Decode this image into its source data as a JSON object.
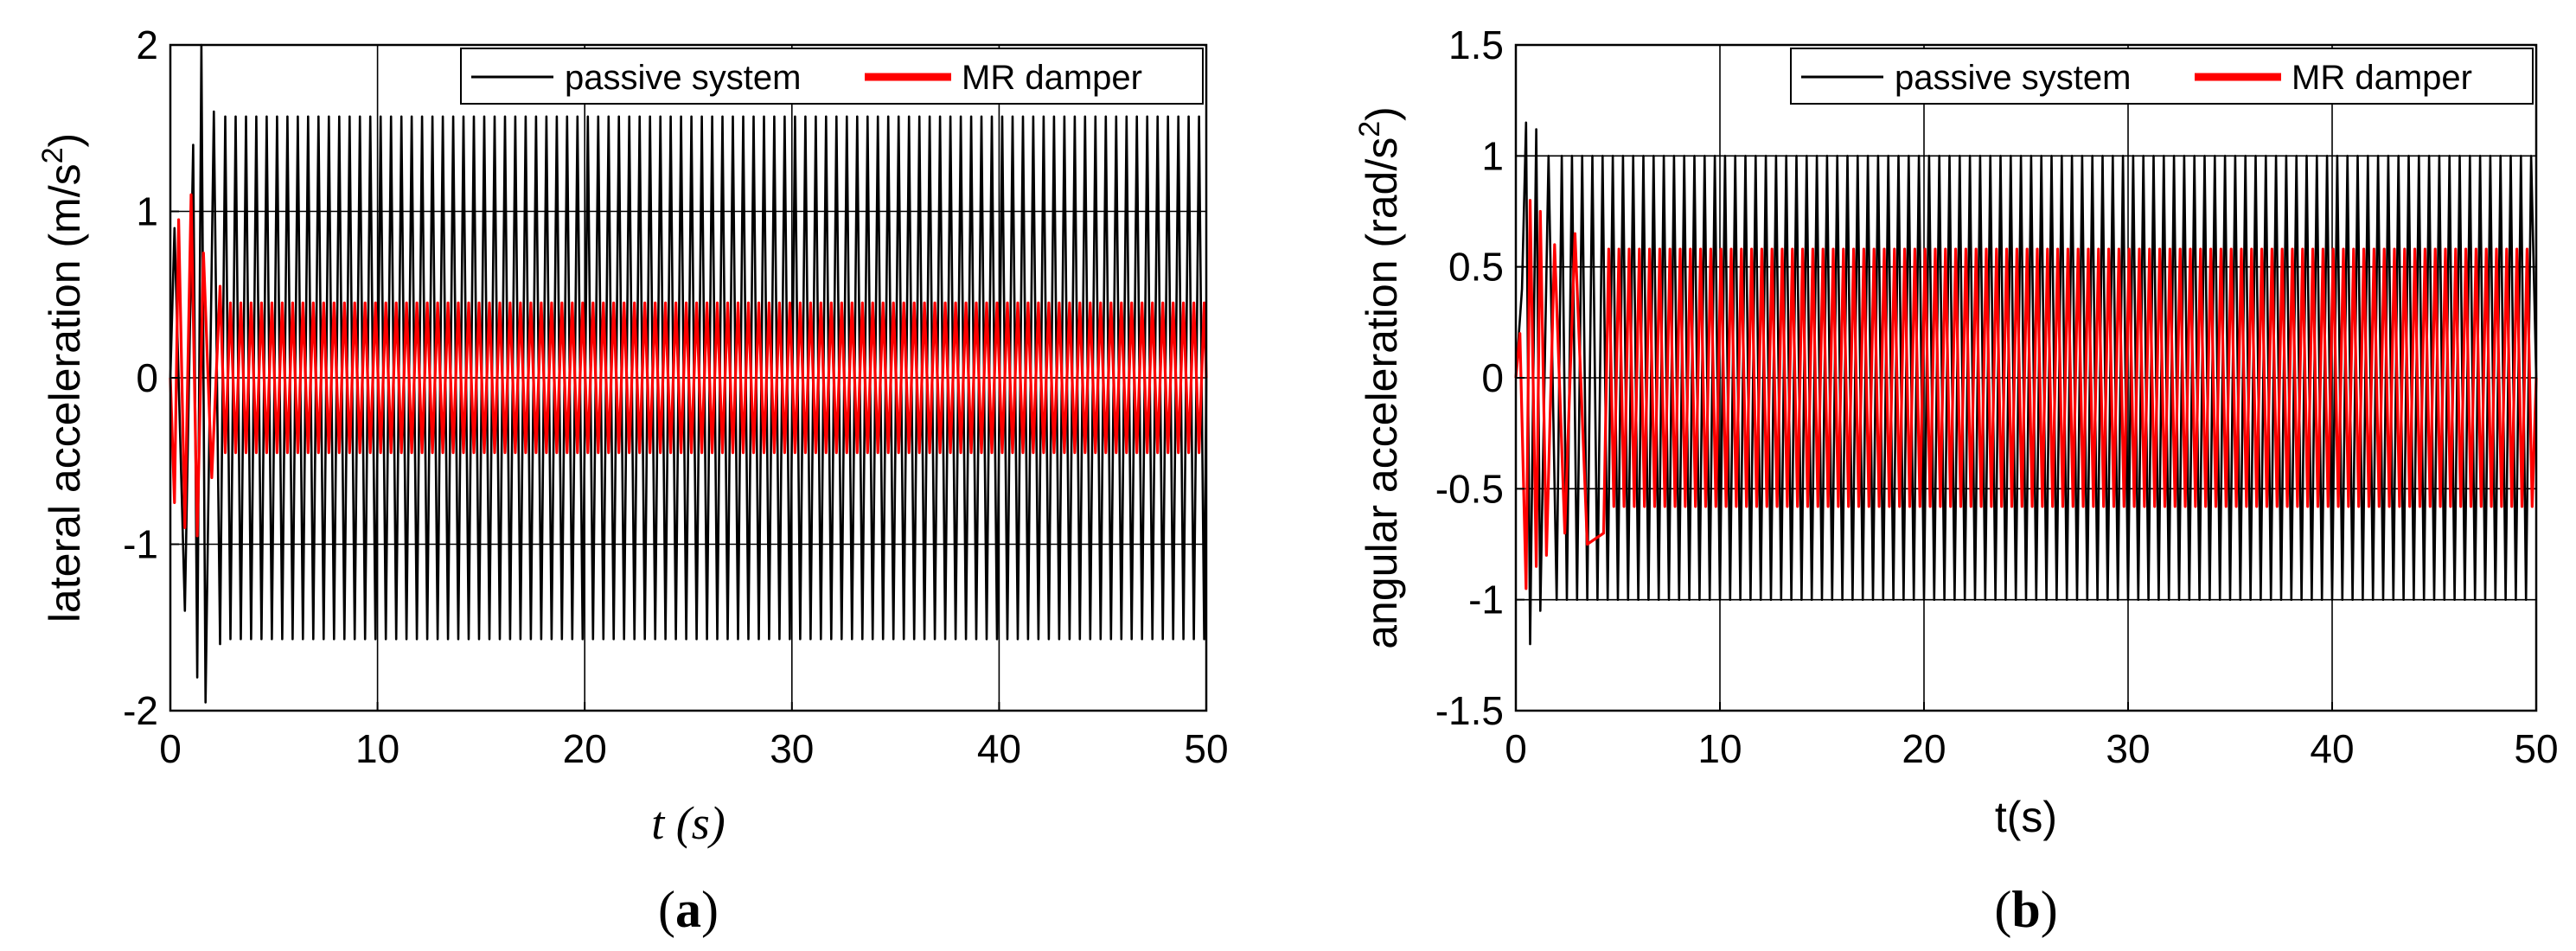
{
  "chart_data": [
    {
      "type": "line",
      "panel_label": "a",
      "title": "",
      "xlabel": "t (s)",
      "ylabel": "lateral acceleration (m/s²)",
      "ylabel_main": "lateral acceleration (m/s",
      "ylabel_sup": "2",
      "ylabel_end": ")",
      "xlim": [
        0,
        50
      ],
      "ylim": [
        -2,
        2
      ],
      "xticks": [
        0,
        10,
        20,
        30,
        40,
        50
      ],
      "yticks": [
        -2,
        -1,
        0,
        1,
        2
      ],
      "grid": true,
      "legend_position": "top-right",
      "legend": [
        "passive system",
        "MR damper"
      ],
      "series": [
        {
          "name": "passive system",
          "color": "#000000",
          "description": "oscillating signal, steady-state amplitude",
          "steady_amplitude": 1.57,
          "transient_peaks": [
            [
              0.2,
              0.9
            ],
            [
              0.7,
              -1.4
            ],
            [
              1.1,
              1.4
            ],
            [
              1.3,
              -1.8
            ],
            [
              1.5,
              2.0
            ],
            [
              1.7,
              -1.95
            ],
            [
              2.1,
              1.6
            ],
            [
              2.4,
              -1.6
            ]
          ],
          "period_s": 0.5
        },
        {
          "name": "MR damper",
          "color": "#ff0000",
          "description": "oscillating signal, reduced amplitude",
          "steady_amplitude": 0.45,
          "transient_peaks": [
            [
              0.2,
              -0.75
            ],
            [
              0.4,
              0.95
            ],
            [
              0.7,
              -0.9
            ],
            [
              1.0,
              1.1
            ],
            [
              1.3,
              -0.95
            ],
            [
              1.6,
              0.75
            ],
            [
              2.0,
              -0.6
            ],
            [
              2.4,
              0.55
            ]
          ],
          "period_s": 0.5
        }
      ]
    },
    {
      "type": "line",
      "panel_label": "b",
      "title": "",
      "xlabel": "t(s)",
      "ylabel": "angular acceleration (rad/s²)",
      "ylabel_main": "angular acceleration (rad/s",
      "ylabel_sup": "2",
      "ylabel_end": ")",
      "xlim": [
        0,
        50
      ],
      "ylim": [
        -1.5,
        1.5
      ],
      "xticks": [
        0,
        10,
        20,
        30,
        40,
        50
      ],
      "yticks": [
        -1.5,
        -1,
        -0.5,
        0,
        0.5,
        1,
        1.5
      ],
      "grid": true,
      "legend_position": "top-right",
      "legend": [
        "passive system",
        "MR damper"
      ],
      "series": [
        {
          "name": "passive system",
          "color": "#000000",
          "description": "oscillating signal, steady-state amplitude",
          "steady_amplitude": 1.0,
          "transient_peaks": [
            [
              0.3,
              0.4
            ],
            [
              0.5,
              1.15
            ],
            [
              0.7,
              -1.2
            ],
            [
              1.0,
              1.12
            ],
            [
              1.2,
              -1.05
            ],
            [
              1.6,
              1.0
            ],
            [
              2.0,
              -1.0
            ]
          ],
          "period_s": 0.5
        },
        {
          "name": "MR damper",
          "color": "#ff0000",
          "description": "oscillating signal, reduced amplitude",
          "steady_amplitude": 0.58,
          "transient_peaks": [
            [
              0.2,
              0.2
            ],
            [
              0.5,
              -0.95
            ],
            [
              0.7,
              0.8
            ],
            [
              1.0,
              -0.85
            ],
            [
              1.2,
              0.75
            ],
            [
              1.5,
              -0.8
            ],
            [
              1.9,
              0.6
            ],
            [
              2.4,
              -0.7
            ],
            [
              2.9,
              0.65
            ],
            [
              3.5,
              -0.75
            ],
            [
              4.3,
              -0.7
            ]
          ],
          "period_s": 0.5
        }
      ]
    }
  ]
}
